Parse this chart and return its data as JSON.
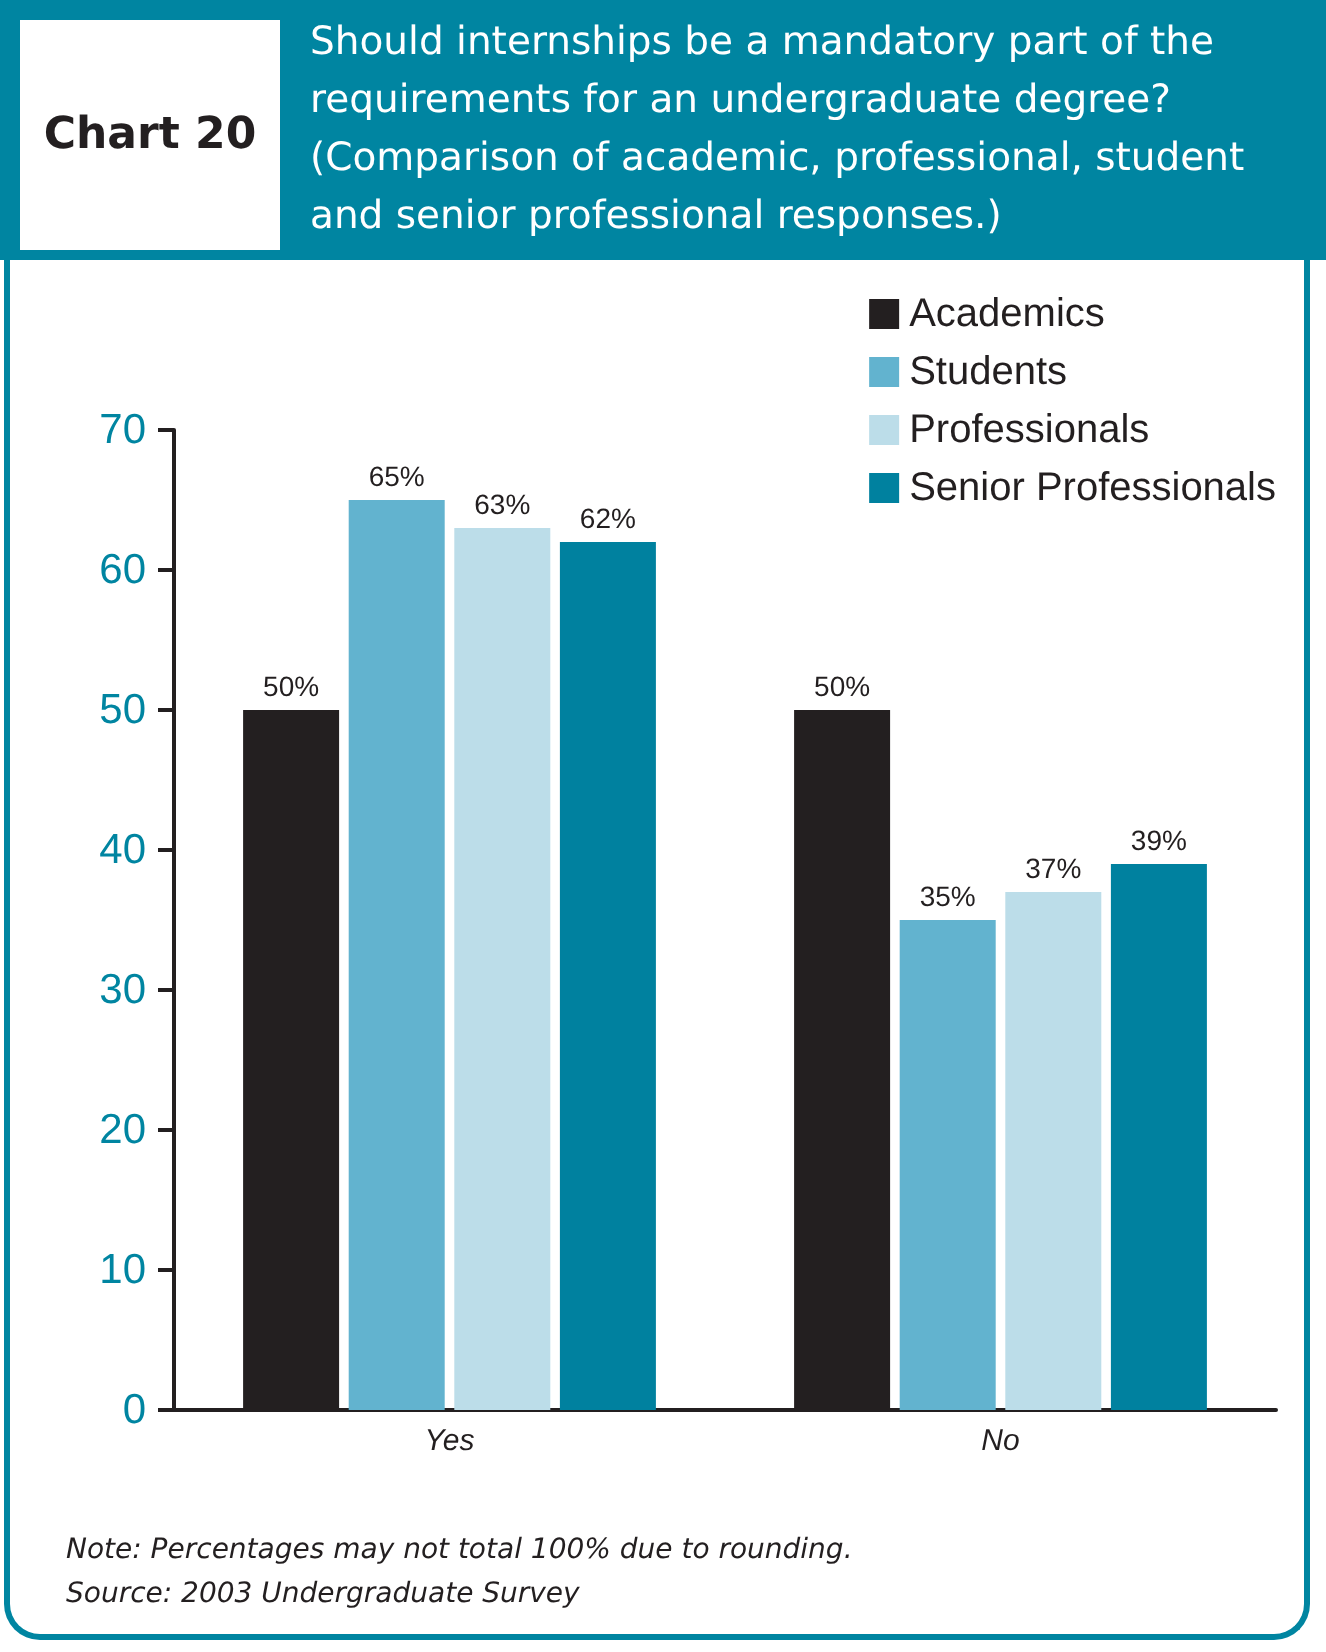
{
  "chart_data": {
    "type": "bar",
    "title": "Should internships be a mandatory part of the requirements for an undergraduate degree? (Comparison of academic, professional, student and senior professional responses.)",
    "annotations": [
      "Chart 20",
      "Note: Percentages may not total 100% due to rounding.",
      "Source: 2003 Undergraduate Survey"
    ],
    "categories": [
      "Yes",
      "No"
    ],
    "series": [
      {
        "name": "Academics",
        "color": "#231f20",
        "values": [
          50,
          50
        ],
        "value_labels": [
          "50%",
          "50%"
        ]
      },
      {
        "name": "Students",
        "color": "#62b3cf",
        "values": [
          65,
          35
        ],
        "value_labels": [
          "65%",
          "35%"
        ]
      },
      {
        "name": "Professionals",
        "color": "#bcdde9",
        "values": [
          63,
          37
        ],
        "value_labels": [
          "63%",
          "37%"
        ]
      },
      {
        "name": "Senior Professionals",
        "color": "#00819f",
        "values": [
          62,
          39
        ],
        "value_labels": [
          "62%",
          "39%"
        ]
      }
    ],
    "ylim": [
      0,
      70
    ],
    "yticks": [
      0,
      10,
      20,
      30,
      40,
      50,
      60,
      70
    ],
    "legend": "top right"
  }
}
